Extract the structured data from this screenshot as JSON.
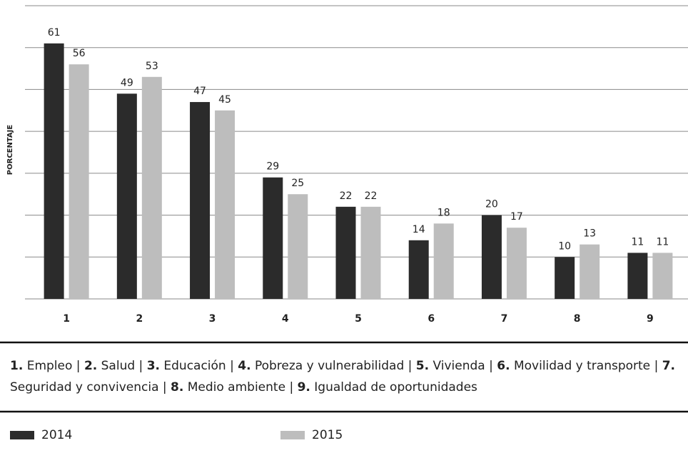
{
  "chart_data": {
    "type": "bar",
    "y_label": "PORCENTAJE",
    "categories": [
      "1",
      "2",
      "3",
      "4",
      "5",
      "6",
      "7",
      "8",
      "9"
    ],
    "series": [
      {
        "name": "2014",
        "color": "#2b2b2b",
        "values": [
          61,
          49,
          47,
          29,
          22,
          14,
          20,
          10,
          11
        ]
      },
      {
        "name": "2015",
        "color": "#bdbdbd",
        "values": [
          56,
          53,
          45,
          25,
          22,
          18,
          17,
          13,
          11
        ]
      }
    ],
    "ylim": [
      0,
      70
    ],
    "yticks": [
      0,
      10,
      20,
      30,
      40,
      50,
      60,
      70
    ],
    "grid": true,
    "category_key": {
      "separator": "|",
      "items": [
        {
          "number": "1.",
          "label": "Empleo"
        },
        {
          "number": "2.",
          "label": "Salud"
        },
        {
          "number": "3.",
          "label": "Educación"
        },
        {
          "number": "4.",
          "label": "Pobreza y vulnerabilidad"
        },
        {
          "number": "5.",
          "label": "Vivienda"
        },
        {
          "number": "6.",
          "label": "Movilidad y transporte"
        },
        {
          "number": "7.",
          "label": "Seguridad y convivencia"
        },
        {
          "number": "8.",
          "label": "Medio ambiente"
        },
        {
          "number": "9.",
          "label": "Igualdad de oportunidades"
        }
      ]
    }
  }
}
